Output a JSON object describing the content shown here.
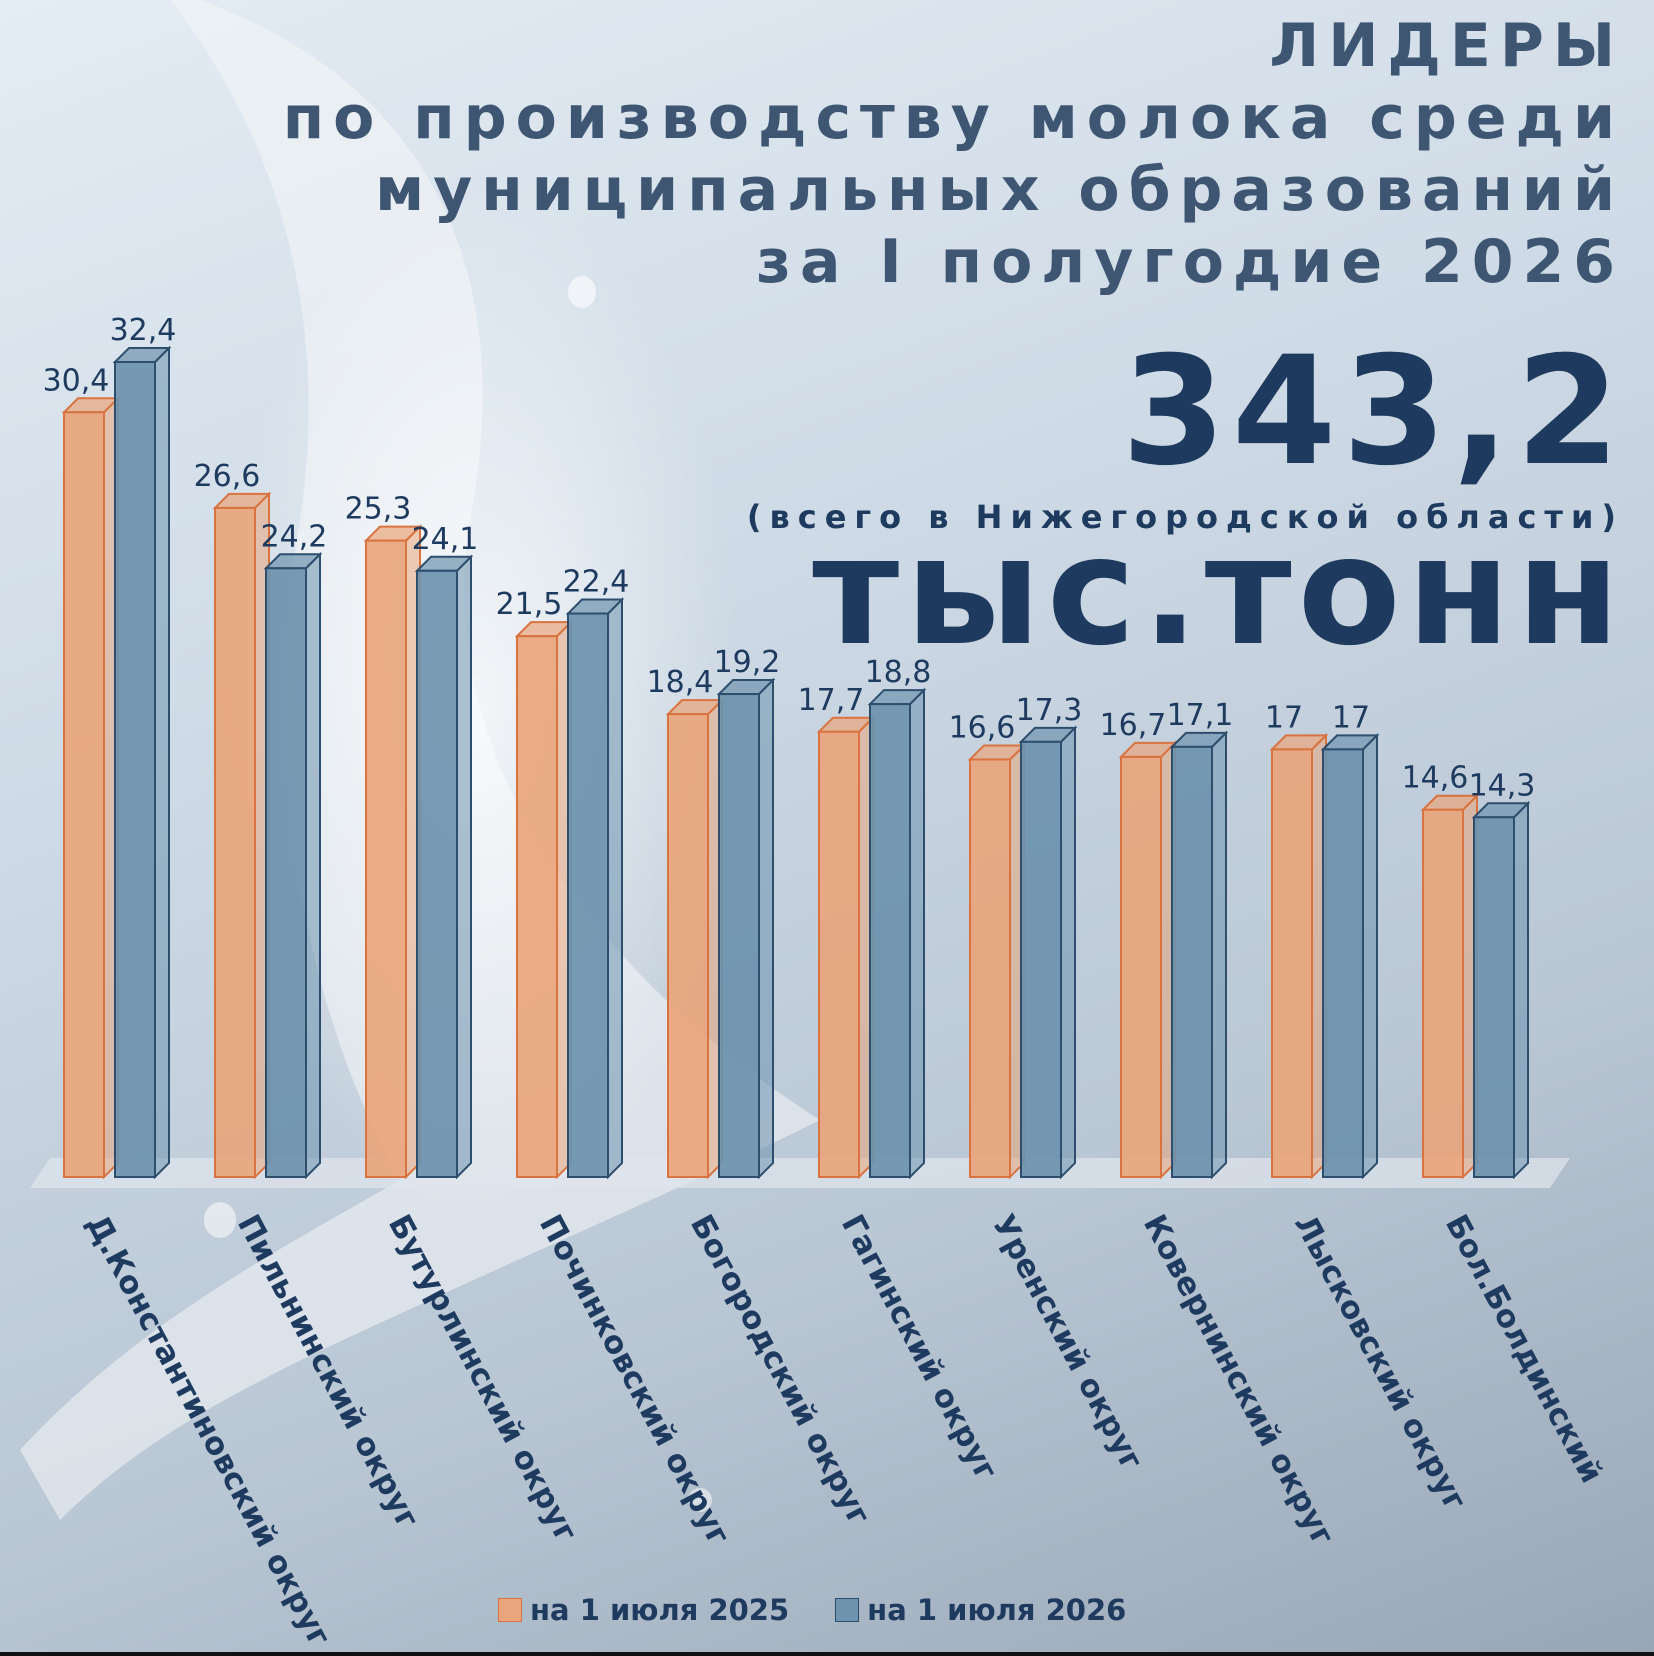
{
  "title": {
    "line1": "ЛИДЕРЫ",
    "line2": "по производству молока среди",
    "line3": "муниципальных образований",
    "line4": "за I полугодие 2026"
  },
  "total": {
    "value": "343,2 тыс.тонн",
    "note": "(всего в Нижегородской области)"
  },
  "colors": {
    "series1": "#e9a57c",
    "series1_edge": "#d9733f",
    "series2": "#6d93ae",
    "series2_edge": "#2e4e6e",
    "text": "#1e3a5f"
  },
  "chart_data": {
    "type": "bar",
    "categories": [
      "Д.Константиновский округ",
      "Пильнинский округ",
      "Бутурлинский округ",
      "Починковский округ",
      "Богородский округ",
      "Гагинский округ",
      "Уренский округ",
      "Ковернинский округ",
      "Лысковский округ",
      "Бол.Болдинский"
    ],
    "series": [
      {
        "name": "на 1 июля 2025",
        "values": [
          30.4,
          26.6,
          25.3,
          21.5,
          18.4,
          17.7,
          16.6,
          16.7,
          17,
          14.6
        ],
        "labels": [
          "30,4",
          "26,6",
          "25,3",
          "21,5",
          "18,4",
          "17,7",
          "16,6",
          "16,7",
          "17",
          "14,6"
        ]
      },
      {
        "name": "на 1 июля 2026",
        "values": [
          32.4,
          24.2,
          24.1,
          22.4,
          19.2,
          18.8,
          17.3,
          17.1,
          17,
          14.3
        ],
        "labels": [
          "32,4",
          "24,2",
          "24,1",
          "22,4",
          "19,2",
          "18,8",
          "17,3",
          "17,1",
          "17",
          "14,3"
        ]
      }
    ],
    "ylim": [
      0,
      32.4
    ],
    "grid": false,
    "legend_position": "bottom"
  }
}
